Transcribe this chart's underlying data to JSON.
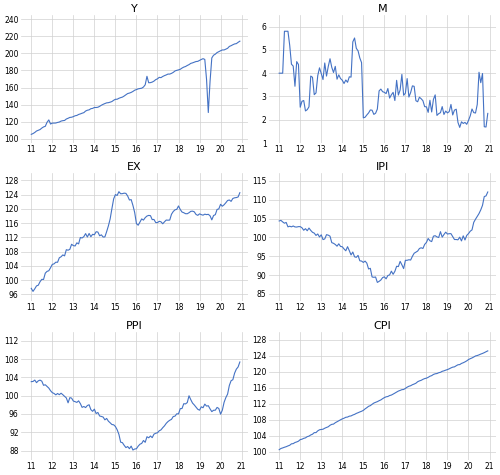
{
  "subplots": [
    {
      "title": "Y",
      "xlim": [
        10.5,
        21.3
      ],
      "ylim": [
        95,
        245
      ],
      "yticks": [
        100,
        120,
        140,
        160,
        180,
        200,
        220,
        240
      ],
      "xticks": [
        11,
        12,
        13,
        14,
        15,
        16,
        17,
        18,
        19,
        20,
        21
      ]
    },
    {
      "title": "M",
      "xlim": [
        10.5,
        21.3
      ],
      "ylim": [
        1,
        6.5
      ],
      "yticks": [
        1,
        2,
        3,
        4,
        5,
        6
      ],
      "xticks": [
        11,
        12,
        13,
        14,
        15,
        16,
        17,
        18,
        19,
        20,
        21
      ]
    },
    {
      "title": "EX",
      "xlim": [
        10.5,
        21.3
      ],
      "ylim": [
        94,
        130
      ],
      "yticks": [
        96,
        100,
        104,
        108,
        112,
        116,
        120,
        124,
        128
      ],
      "xticks": [
        11,
        12,
        13,
        14,
        15,
        16,
        17,
        18,
        19,
        20,
        21
      ]
    },
    {
      "title": "IPI",
      "xlim": [
        10.5,
        21.3
      ],
      "ylim": [
        83,
        117
      ],
      "yticks": [
        85,
        90,
        95,
        100,
        105,
        110,
        115
      ],
      "xticks": [
        11,
        12,
        13,
        14,
        15,
        16,
        17,
        18,
        19,
        20,
        21
      ]
    },
    {
      "title": "PPI",
      "xlim": [
        10.5,
        21.3
      ],
      "ylim": [
        86,
        114
      ],
      "yticks": [
        88,
        92,
        96,
        100,
        104,
        108,
        112
      ],
      "xticks": [
        11,
        12,
        13,
        14,
        15,
        16,
        17,
        18,
        19,
        20,
        21
      ]
    },
    {
      "title": "CPI",
      "xlim": [
        10.5,
        21.3
      ],
      "ylim": [
        98,
        130
      ],
      "yticks": [
        100,
        104,
        108,
        112,
        116,
        120,
        124,
        128
      ],
      "xticks": [
        11,
        12,
        13,
        14,
        15,
        16,
        17,
        18,
        19,
        20,
        21
      ]
    }
  ],
  "line_color": "#4472C4",
  "line_width": 0.8,
  "grid_color": "#D0D0D0",
  "background_color": "#FFFFFF"
}
